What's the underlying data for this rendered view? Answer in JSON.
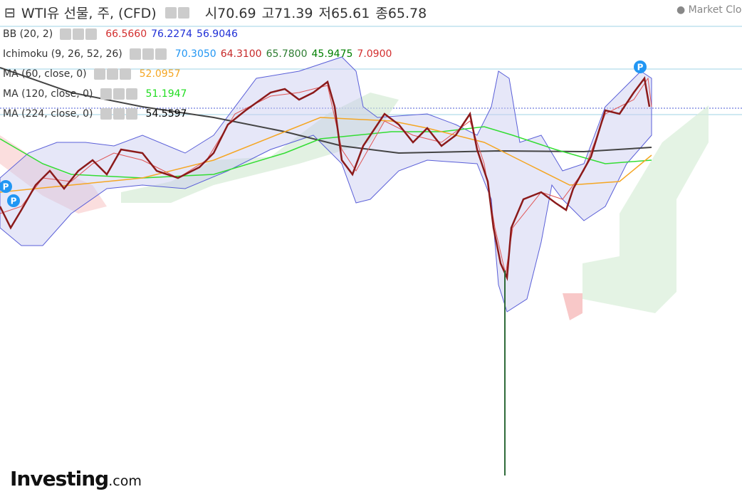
{
  "header": {
    "title": "WTI유 선물, 주, (CFD)",
    "ohlc": [
      {
        "label": "시",
        "value": "70.69"
      },
      {
        "label": "고",
        "value": "71.39"
      },
      {
        "label": "저",
        "value": "65.61"
      },
      {
        "label": "종",
        "value": "65.78"
      }
    ],
    "status": "Market Closed"
  },
  "indicators": [
    {
      "name": "BB (20, 2)",
      "values": [
        {
          "text": "66.5660",
          "color": "#d32f2f"
        },
        {
          "text": "76.2274",
          "color": "#1f2fd6"
        },
        {
          "text": "56.9046",
          "color": "#1f2fd6"
        }
      ]
    },
    {
      "name": "Ichimoku (9, 26, 52, 26)",
      "values": [
        {
          "text": "70.3050",
          "color": "#2196f3"
        },
        {
          "text": "64.3100",
          "color": "#c62828"
        },
        {
          "text": "65.7800",
          "color": "#2e7d32"
        },
        {
          "text": "45.9475",
          "color": "#008000"
        },
        {
          "text": "7.0900",
          "color": "#d32f2f"
        }
      ]
    },
    {
      "name": "MA (60, close, 0)",
      "values": [
        {
          "text": "52.0957",
          "color": "#f5a623"
        }
      ]
    },
    {
      "name": "MA (120, close, 0)",
      "values": [
        {
          "text": "51.1947",
          "color": "#22dd22"
        }
      ]
    },
    {
      "name": "MA (224, close, 0)",
      "values": [
        {
          "text": "54.5597",
          "color": "#000000"
        }
      ]
    }
  ],
  "pivot_marker": "P",
  "logo": {
    "brand": "Investing",
    "suffix": ".com"
  }
}
